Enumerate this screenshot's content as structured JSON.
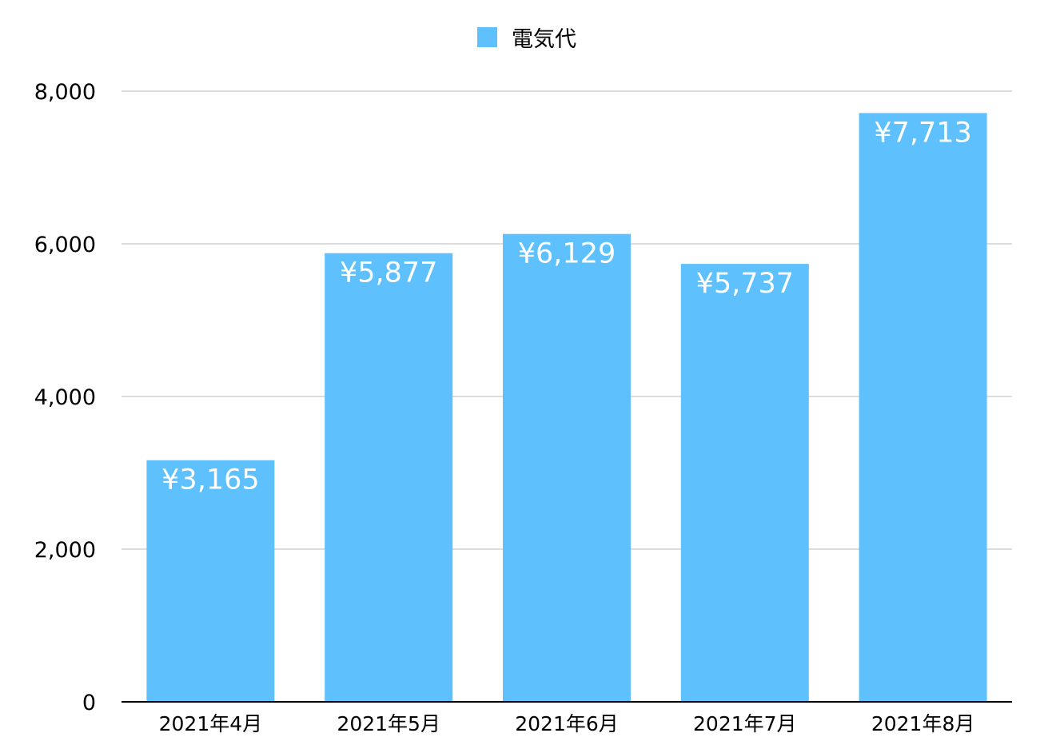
{
  "chart_data": {
    "type": "bar",
    "title": "",
    "xlabel": "",
    "ylabel": "",
    "legend_position": "top-center",
    "grid": true,
    "ylim": [
      0,
      8000
    ],
    "yticks": [
      0,
      2000,
      4000,
      6000,
      8000
    ],
    "ytick_labels": [
      "0",
      "2,000",
      "4,000",
      "6,000",
      "8,000"
    ],
    "categories": [
      "2021年4月",
      "2021年5月",
      "2021年6月",
      "2021年7月",
      "2021年8月"
    ],
    "series": [
      {
        "name": "電気代",
        "color": "#5ec1fd",
        "values": [
          3165,
          5877,
          6129,
          5737,
          7713
        ],
        "data_labels": [
          "¥3,165",
          "¥5,877",
          "¥6,129",
          "¥5,737",
          "¥7,713"
        ]
      }
    ]
  }
}
